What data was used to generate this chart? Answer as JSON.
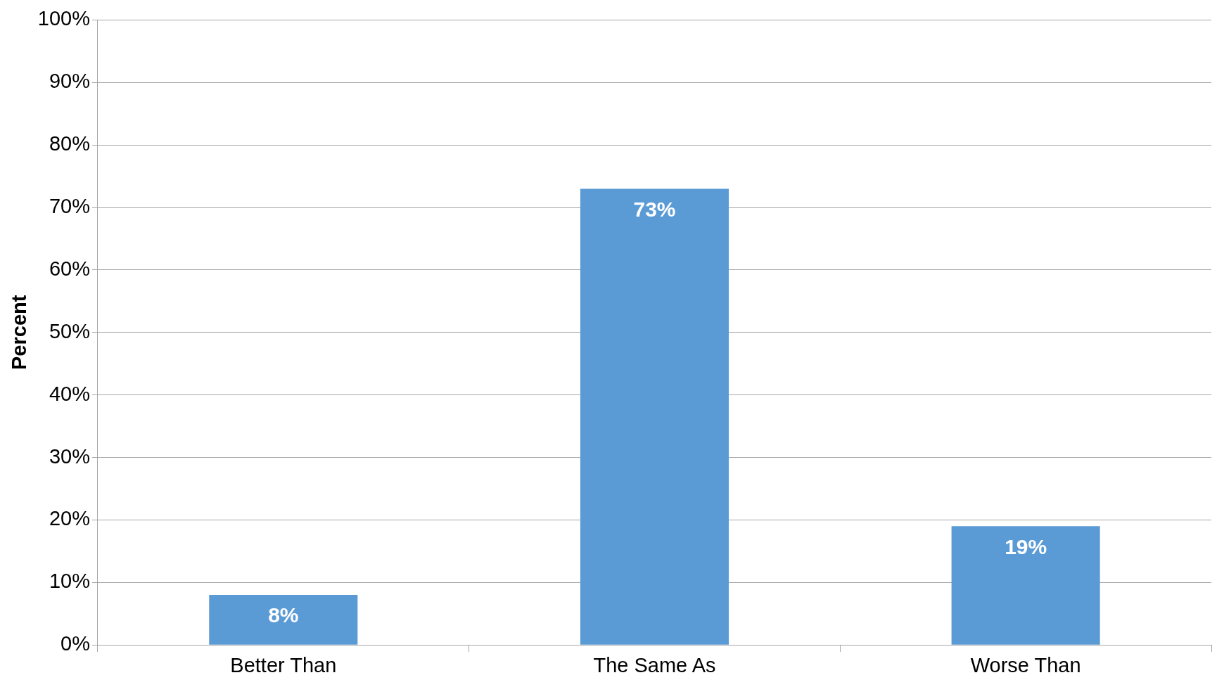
{
  "chart_data": {
    "type": "bar",
    "ylabel": "Percent",
    "categories": [
      "Better Than",
      "The Same As",
      "Worse Than"
    ],
    "values": [
      8,
      73,
      19
    ],
    "color": "#5b9bd5",
    "value_labels": [
      "8%",
      "73%",
      "19%"
    ],
    "ylim": [
      0,
      100
    ],
    "yticks": [
      {
        "value": 0,
        "label": "0%"
      },
      {
        "value": 10,
        "label": "10%"
      },
      {
        "value": 20,
        "label": "20%"
      },
      {
        "value": 30,
        "label": "30%"
      },
      {
        "value": 40,
        "label": "40%"
      },
      {
        "value": 50,
        "label": "50%"
      },
      {
        "value": 60,
        "label": "60%"
      },
      {
        "value": 70,
        "label": "70%"
      },
      {
        "value": 80,
        "label": "80%"
      },
      {
        "value": 90,
        "label": "90%"
      },
      {
        "value": 100,
        "label": "100%"
      }
    ],
    "grid": "y",
    "legend": false
  }
}
